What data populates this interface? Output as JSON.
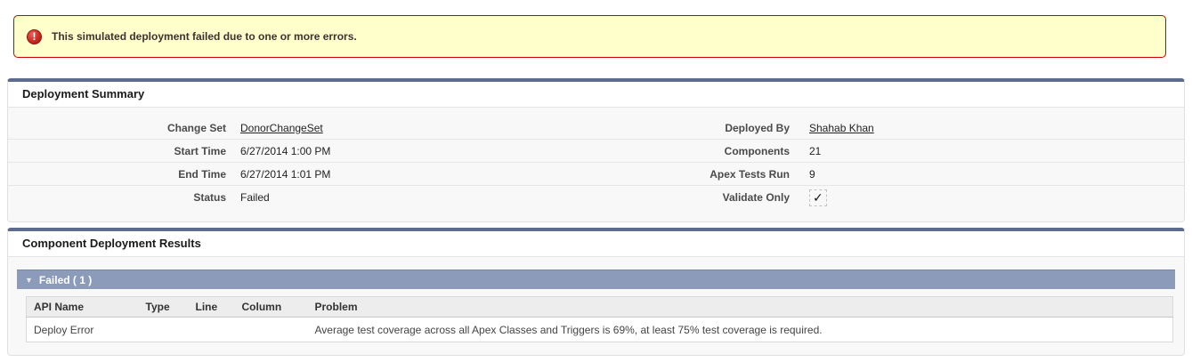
{
  "banner": {
    "message": "This simulated deployment failed due to one or more errors.",
    "icon": "error-icon",
    "colors": {
      "background": "#FFFFCC",
      "border": "#CC0000",
      "text": "#413030"
    }
  },
  "summary": {
    "title": "Deployment Summary",
    "rows": [
      {
        "left_label": "Change Set",
        "left_value": "DonorChangeSet",
        "left_is_link": true,
        "right_label": "Deployed By",
        "right_value": "Shahab Khan",
        "right_is_link": true
      },
      {
        "left_label": "Start Time",
        "left_value": "6/27/2014 1:00 PM",
        "right_label": "Components",
        "right_value": "21"
      },
      {
        "left_label": "End Time",
        "left_value": "6/27/2014 1:01 PM",
        "right_label": "Apex Tests Run",
        "right_value": "9"
      },
      {
        "left_label": "Status",
        "left_value": "Failed",
        "right_label": "Validate Only",
        "right_value": "✓",
        "right_is_checkbox": true
      }
    ]
  },
  "results": {
    "title": "Component Deployment Results",
    "group_header": "Failed ( 1 )",
    "collapse_icon": "▼",
    "table": {
      "headers": [
        "API Name",
        "Type",
        "Line",
        "Column",
        "Problem"
      ],
      "rows": [
        {
          "api_name": "Deploy Error",
          "type": "",
          "line": "",
          "column": "",
          "problem": "Average test coverage across all Apex Classes and Triggers is 69%, at least 75% test coverage is required."
        }
      ]
    }
  },
  "colors": {
    "section_top_border": "#5c6b8e",
    "failed_bar": "#8d9bba",
    "section_background": "#f8f8f8"
  }
}
